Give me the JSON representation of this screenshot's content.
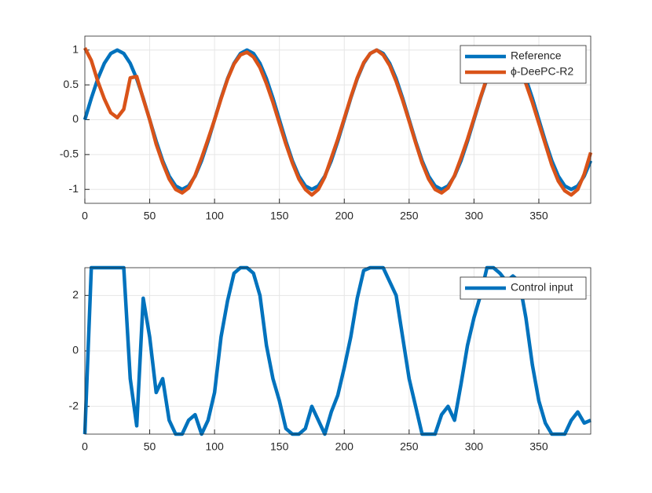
{
  "chart_data": [
    {
      "type": "line",
      "xlim": [
        0,
        390
      ],
      "ylim": [
        -1.2,
        1.2
      ],
      "xticks": [
        0,
        50,
        100,
        150,
        200,
        250,
        300,
        350
      ],
      "yticks": [
        -1,
        -0.5,
        0,
        0.5,
        1
      ],
      "grid": true,
      "legend": "upper right",
      "x": [
        0,
        5,
        10,
        15,
        20,
        25,
        30,
        35,
        40,
        45,
        50,
        55,
        60,
        65,
        70,
        75,
        80,
        85,
        90,
        95,
        100,
        105,
        110,
        115,
        120,
        125,
        130,
        135,
        140,
        145,
        150,
        155,
        160,
        165,
        170,
        175,
        180,
        185,
        190,
        195,
        200,
        205,
        210,
        215,
        220,
        225,
        230,
        235,
        240,
        245,
        250,
        255,
        260,
        265,
        270,
        275,
        280,
        285,
        290,
        295,
        300,
        305,
        310,
        315,
        320,
        325,
        330,
        335,
        340,
        345,
        350,
        355,
        360,
        365,
        370,
        375,
        380,
        385,
        390
      ],
      "series": [
        {
          "name": "Reference",
          "color": "#0072BD",
          "values": [
            0,
            0.309,
            0.588,
            0.809,
            0.951,
            1,
            0.951,
            0.809,
            0.588,
            0.309,
            0,
            -0.309,
            -0.588,
            -0.809,
            -0.951,
            -1,
            -0.951,
            -0.809,
            -0.588,
            -0.309,
            0,
            0.309,
            0.588,
            0.809,
            0.951,
            1,
            0.951,
            0.809,
            0.588,
            0.309,
            0,
            -0.309,
            -0.588,
            -0.809,
            -0.951,
            -1,
            -0.951,
            -0.809,
            -0.588,
            -0.309,
            0,
            0.309,
            0.588,
            0.809,
            0.951,
            1,
            0.951,
            0.809,
            0.588,
            0.309,
            0,
            -0.309,
            -0.588,
            -0.809,
            -0.951,
            -1,
            -0.951,
            -0.809,
            -0.588,
            -0.309,
            0,
            0.309,
            0.588,
            0.809,
            0.951,
            1,
            0.951,
            0.809,
            0.588,
            0.309,
            0,
            -0.309,
            -0.588,
            -0.809,
            -0.951,
            -1,
            -0.951,
            -0.809,
            -0.588
          ]
        },
        {
          "name": "ϕ-DeePC-R2",
          "color": "#D95319",
          "values": [
            1.03,
            0.85,
            0.55,
            0.3,
            0.1,
            0.03,
            0.15,
            0.6,
            0.62,
            0.3,
            0,
            -0.35,
            -0.62,
            -0.85,
            -1,
            -1.05,
            -0.98,
            -0.8,
            -0.55,
            -0.28,
            0,
            0.3,
            0.58,
            0.8,
            0.93,
            0.97,
            0.9,
            0.75,
            0.52,
            0.25,
            -0.05,
            -0.35,
            -0.62,
            -0.85,
            -1,
            -1.08,
            -1,
            -0.82,
            -0.55,
            -0.28,
            0.02,
            0.32,
            0.6,
            0.82,
            0.95,
            1,
            0.93,
            0.78,
            0.55,
            0.28,
            -0.02,
            -0.33,
            -0.62,
            -0.85,
            -1,
            -1.05,
            -0.98,
            -0.8,
            -0.55,
            -0.28,
            0.02,
            0.32,
            0.6,
            0.82,
            0.95,
            0.98,
            0.9,
            0.75,
            0.52,
            0.25,
            -0.05,
            -0.35,
            -0.65,
            -0.88,
            -1.02,
            -1.08,
            -1,
            -0.78,
            -0.47
          ]
        }
      ]
    },
    {
      "type": "line",
      "xlim": [
        0,
        390
      ],
      "ylim": [
        -3,
        3
      ],
      "xticks": [
        0,
        50,
        100,
        150,
        200,
        250,
        300,
        350
      ],
      "yticks": [
        -2,
        0,
        2
      ],
      "grid": true,
      "legend": "upper right",
      "x": [
        0,
        5,
        10,
        15,
        20,
        25,
        30,
        35,
        40,
        45,
        50,
        55,
        60,
        65,
        70,
        75,
        80,
        85,
        90,
        95,
        100,
        105,
        110,
        115,
        120,
        125,
        130,
        135,
        140,
        145,
        150,
        155,
        160,
        165,
        170,
        175,
        180,
        185,
        190,
        195,
        200,
        205,
        210,
        215,
        220,
        225,
        230,
        235,
        240,
        245,
        250,
        255,
        260,
        265,
        270,
        275,
        280,
        285,
        290,
        295,
        300,
        305,
        310,
        315,
        320,
        325,
        330,
        335,
        340,
        345,
        350,
        355,
        360,
        365,
        370,
        375,
        380,
        385,
        390
      ],
      "series": [
        {
          "name": "Control input",
          "color": "#0072BD",
          "values": [
            -3,
            3,
            3,
            3,
            3,
            3,
            3,
            -1,
            -2.7,
            1.9,
            0.5,
            -1.5,
            -1,
            -2.5,
            -3,
            -3,
            -2.5,
            -2.3,
            -3,
            -2.5,
            -1.5,
            0.5,
            1.8,
            2.8,
            3,
            3,
            2.8,
            2,
            0.2,
            -1,
            -1.8,
            -2.8,
            -3,
            -3,
            -2.8,
            -2,
            -2.5,
            -3,
            -2.2,
            -1.6,
            -0.6,
            0.5,
            1.9,
            2.9,
            3,
            3,
            3,
            2.5,
            2,
            0.5,
            -1,
            -2,
            -3,
            -3,
            -3,
            -2.3,
            -2,
            -2.5,
            -1.2,
            0.2,
            1.2,
            2,
            3,
            3,
            2.8,
            2.5,
            2.7,
            2.5,
            1.2,
            -0.5,
            -1.8,
            -2.6,
            -3,
            -3,
            -3,
            -2.5,
            -2.2,
            -2.6,
            -2.5
          ]
        }
      ]
    }
  ]
}
